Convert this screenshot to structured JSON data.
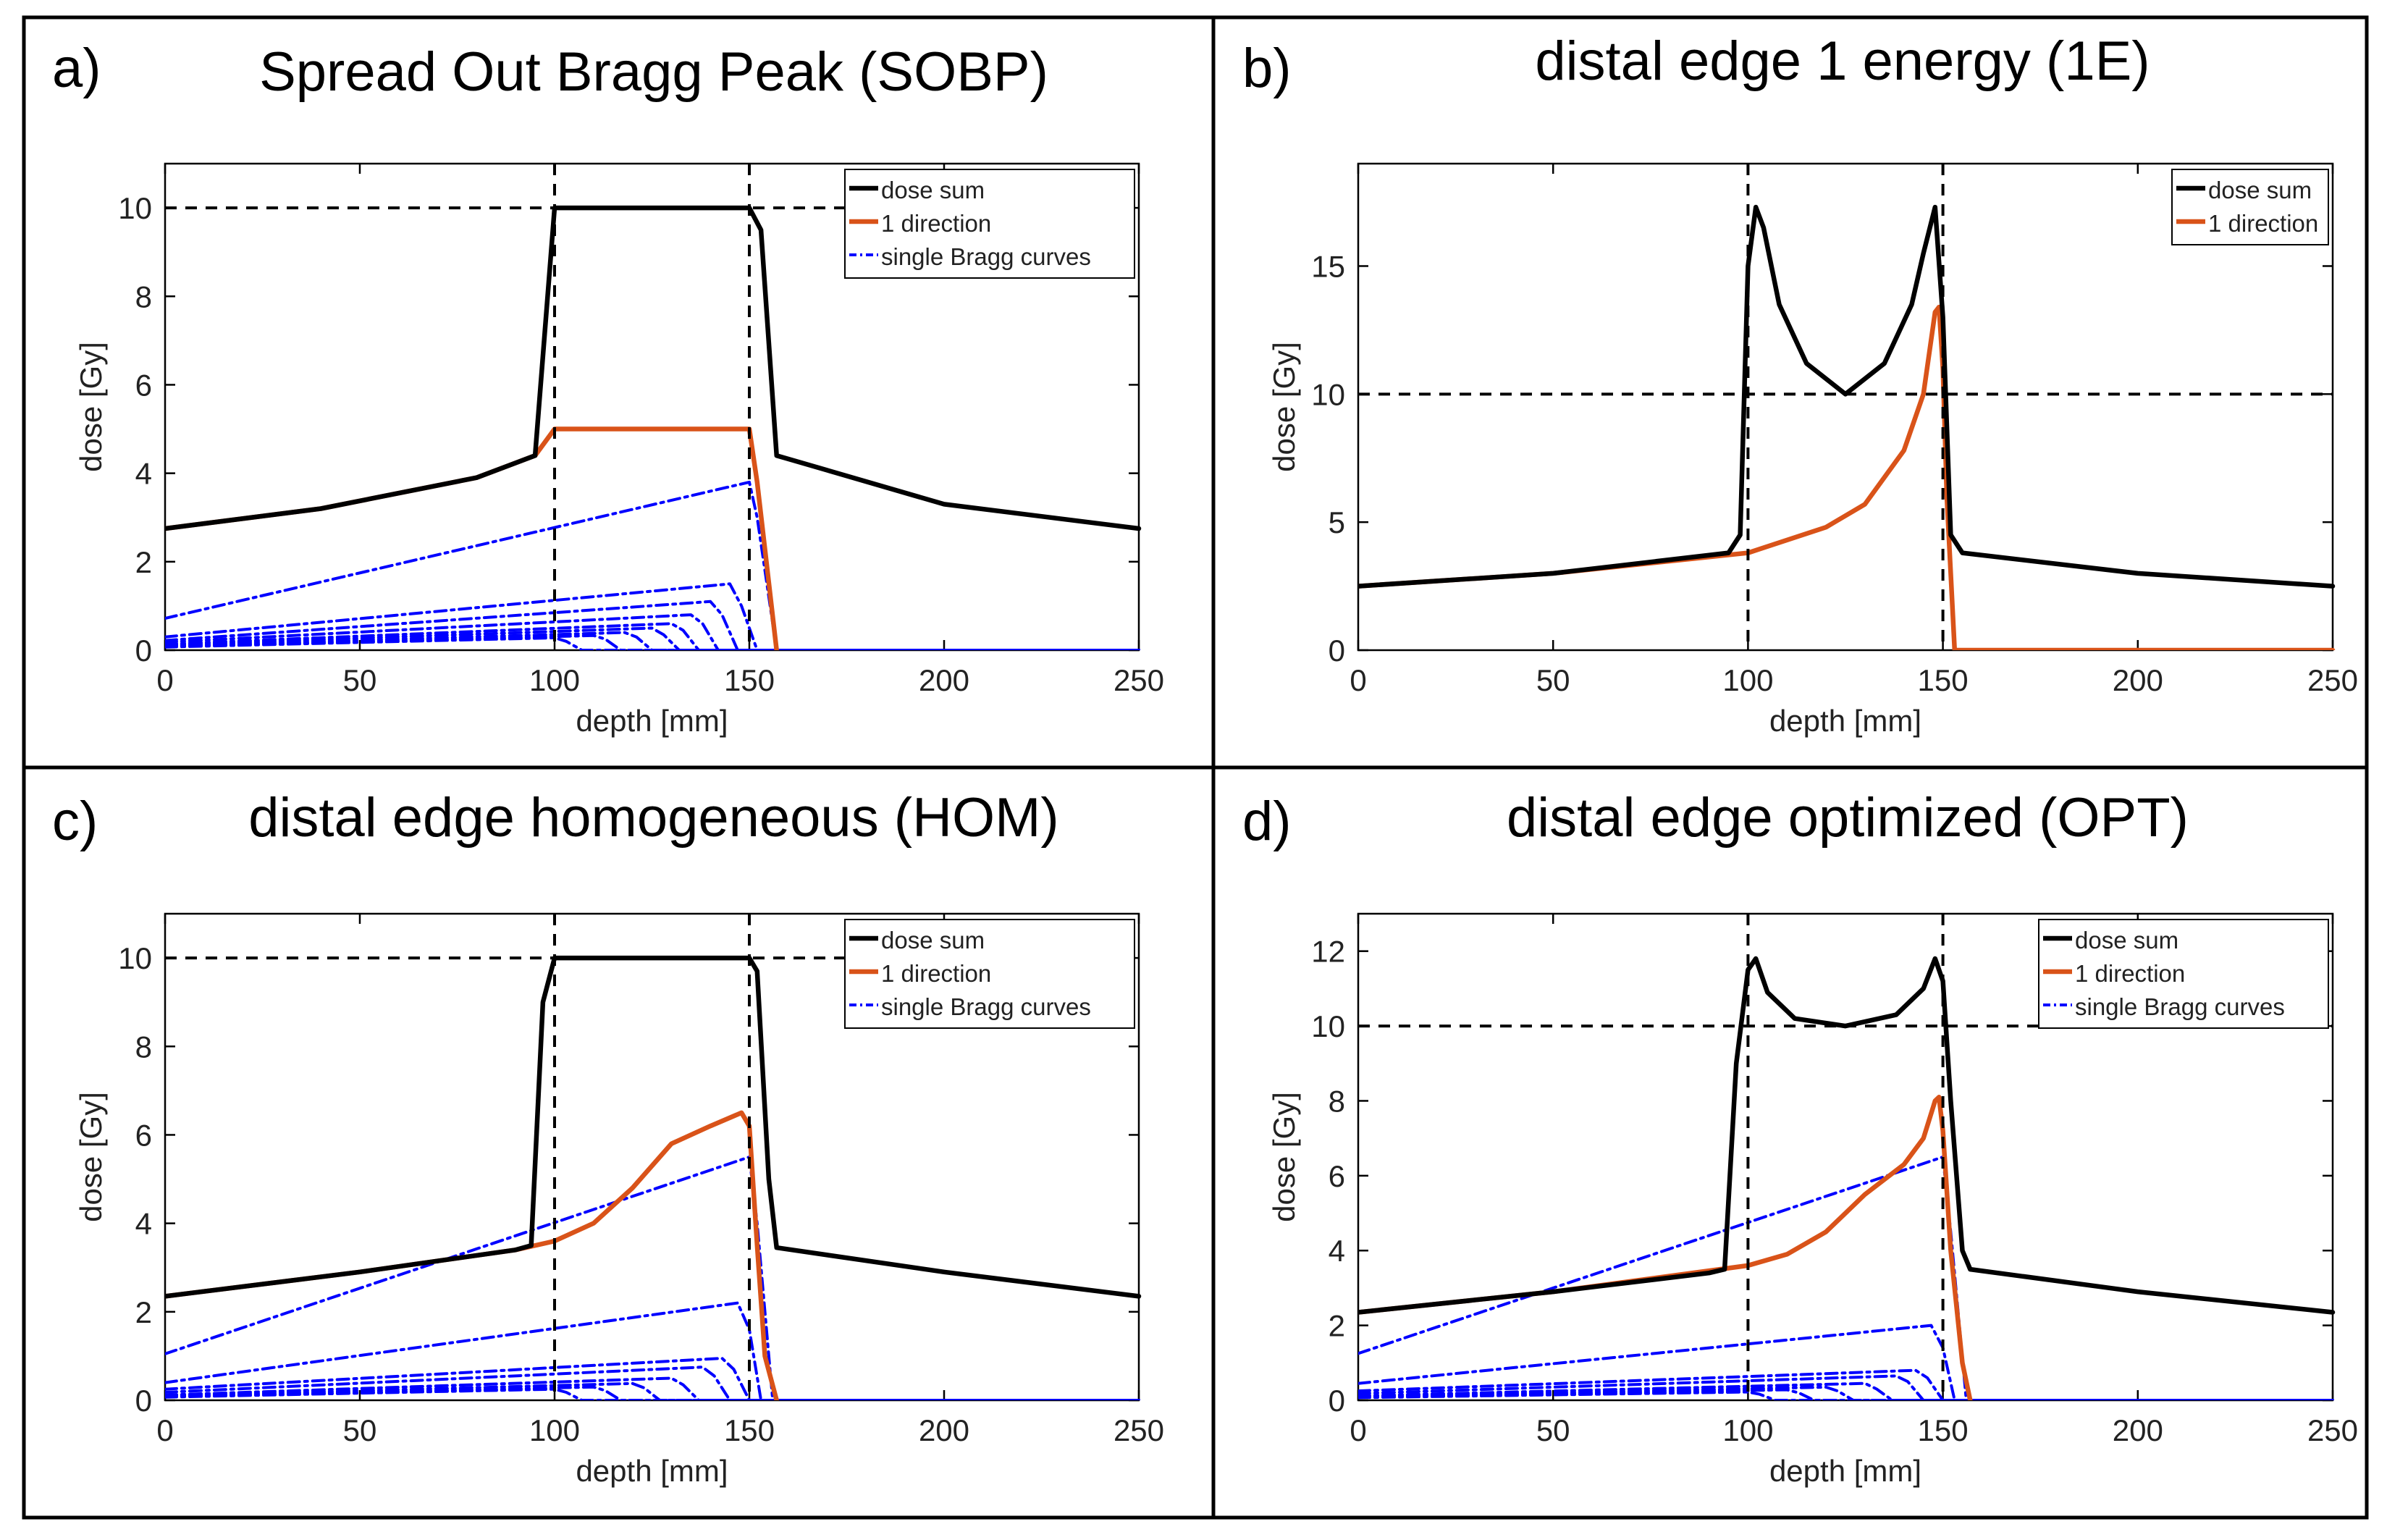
{
  "colors": {
    "dose_sum": "#000000",
    "one_direction": "#d95319",
    "single_bragg": "#0000ff",
    "guide": "#000000"
  },
  "chart_data": [
    {
      "type": "line",
      "panel_label": "a)",
      "title": "Spread Out Bragg Peak (SOBP)",
      "xlabel": "depth [mm]",
      "ylabel": "dose [Gy]",
      "xlim": [
        0,
        250
      ],
      "ylim": [
        0,
        11
      ],
      "xticks": [
        0,
        50,
        100,
        150,
        200,
        250
      ],
      "yticks": [
        0,
        2,
        4,
        6,
        8,
        10
      ],
      "grid": false,
      "legend_position": "top-right",
      "reference_lines": {
        "x": [
          100,
          150
        ],
        "y": [
          10
        ]
      },
      "series": [
        {
          "name": "dose sum",
          "kind": "dose_sum",
          "x": [
            0,
            40,
            80,
            95,
            100,
            150,
            153,
            157,
            200,
            250
          ],
          "y": [
            2.75,
            3.2,
            3.9,
            4.4,
            10,
            10,
            9.5,
            4.4,
            3.3,
            2.75
          ]
        },
        {
          "name": "1 direction",
          "kind": "one_dir",
          "x": [
            0,
            40,
            80,
            95,
            100,
            150,
            152,
            157
          ],
          "y": [
            2.75,
            3.2,
            3.9,
            4.4,
            5,
            5,
            3.8,
            0
          ]
        },
        {
          "name": "single Bragg curves",
          "kind": "bragg",
          "x": [
            0,
            150,
            152,
            157,
            250
          ],
          "y": [
            0.72,
            3.8,
            3.0,
            0,
            0
          ]
        },
        {
          "name": "",
          "kind": "bragg",
          "x": [
            0,
            145,
            148,
            152,
            250
          ],
          "y": [
            0.3,
            1.5,
            1.0,
            0,
            0
          ]
        },
        {
          "name": "",
          "kind": "bragg",
          "x": [
            0,
            140,
            143,
            147,
            250
          ],
          "y": [
            0.22,
            1.1,
            0.8,
            0,
            0
          ]
        },
        {
          "name": "",
          "kind": "bragg",
          "x": [
            0,
            135,
            138,
            142,
            250
          ],
          "y": [
            0.18,
            0.8,
            0.6,
            0,
            0
          ]
        },
        {
          "name": "",
          "kind": "bragg",
          "x": [
            0,
            130,
            133,
            137,
            250
          ],
          "y": [
            0.14,
            0.6,
            0.45,
            0,
            0
          ]
        },
        {
          "name": "",
          "kind": "bragg",
          "x": [
            0,
            125,
            128,
            132,
            250
          ],
          "y": [
            0.12,
            0.5,
            0.35,
            0,
            0
          ]
        },
        {
          "name": "",
          "kind": "bragg",
          "x": [
            0,
            118,
            121,
            125,
            250
          ],
          "y": [
            0.1,
            0.4,
            0.3,
            0,
            0
          ]
        },
        {
          "name": "",
          "kind": "bragg",
          "x": [
            0,
            110,
            113,
            117,
            250
          ],
          "y": [
            0.08,
            0.33,
            0.25,
            0,
            0
          ]
        },
        {
          "name": "",
          "kind": "bragg",
          "x": [
            0,
            100,
            103,
            107,
            250
          ],
          "y": [
            0.07,
            0.28,
            0.2,
            0,
            0
          ]
        }
      ]
    },
    {
      "type": "line",
      "panel_label": "b)",
      "title": "distal edge 1 energy (1E)",
      "xlabel": "depth [mm]",
      "ylabel": "dose [Gy]",
      "xlim": [
        0,
        250
      ],
      "ylim": [
        0,
        19
      ],
      "xticks": [
        0,
        50,
        100,
        150,
        200,
        250
      ],
      "yticks": [
        0,
        5,
        10,
        15
      ],
      "grid": false,
      "legend_position": "top-right",
      "reference_lines": {
        "x": [
          100,
          150
        ],
        "y": [
          10
        ]
      },
      "series": [
        {
          "name": "dose sum",
          "kind": "dose_sum",
          "x": [
            0,
            50,
            95,
            98,
            100,
            102,
            104,
            108,
            115,
            125,
            135,
            142,
            145,
            148,
            150,
            152,
            155,
            200,
            250
          ],
          "y": [
            2.5,
            3.0,
            3.8,
            4.5,
            15.0,
            17.3,
            16.5,
            13.5,
            11.2,
            10.0,
            11.2,
            13.5,
            15.5,
            17.3,
            13.0,
            4.5,
            3.8,
            3.0,
            2.5
          ]
        },
        {
          "name": "1 direction",
          "kind": "one_dir",
          "x": [
            0,
            50,
            100,
            120,
            130,
            140,
            145,
            148,
            149,
            150,
            151,
            153,
            250
          ],
          "y": [
            2.5,
            3.0,
            3.8,
            4.8,
            5.7,
            7.8,
            10.0,
            13.2,
            13.4,
            11.0,
            6.0,
            0,
            0
          ]
        }
      ]
    },
    {
      "type": "line",
      "panel_label": "c)",
      "title": "distal edge homogeneous (HOM)",
      "xlabel": "depth [mm]",
      "ylabel": "dose [Gy]",
      "xlim": [
        0,
        250
      ],
      "ylim": [
        0,
        11
      ],
      "xticks": [
        0,
        50,
        100,
        150,
        200,
        250
      ],
      "yticks": [
        0,
        2,
        4,
        6,
        8,
        10
      ],
      "grid": false,
      "legend_position": "top-right",
      "reference_lines": {
        "x": [
          100,
          150
        ],
        "y": [
          10
        ]
      },
      "series": [
        {
          "name": "dose sum",
          "kind": "dose_sum",
          "x": [
            0,
            50,
            90,
            94,
            97,
            100,
            150,
            152,
            155,
            157,
            200,
            250
          ],
          "y": [
            2.35,
            2.9,
            3.4,
            3.5,
            9.0,
            10,
            10,
            9.7,
            5.0,
            3.45,
            2.9,
            2.35
          ]
        },
        {
          "name": "1 direction",
          "kind": "one_dir",
          "x": [
            0,
            50,
            90,
            100,
            110,
            120,
            130,
            140,
            148,
            150,
            152,
            154,
            157
          ],
          "y": [
            2.35,
            2.9,
            3.4,
            3.6,
            4.0,
            4.8,
            5.8,
            6.2,
            6.5,
            6.2,
            3.5,
            1.0,
            0
          ]
        },
        {
          "name": "single Bragg curves",
          "kind": "bragg",
          "x": [
            0,
            150,
            152,
            156,
            250
          ],
          "y": [
            1.05,
            5.5,
            4.0,
            0,
            0
          ]
        },
        {
          "name": "",
          "kind": "bragg",
          "x": [
            0,
            147,
            150,
            153,
            250
          ],
          "y": [
            0.4,
            2.2,
            1.6,
            0,
            0
          ]
        },
        {
          "name": "",
          "kind": "bragg",
          "x": [
            0,
            143,
            146,
            150,
            250
          ],
          "y": [
            0.25,
            0.95,
            0.7,
            0,
            0
          ]
        },
        {
          "name": "",
          "kind": "bragg",
          "x": [
            0,
            138,
            141,
            145,
            250
          ],
          "y": [
            0.18,
            0.75,
            0.55,
            0,
            0
          ]
        },
        {
          "name": "",
          "kind": "bragg",
          "x": [
            0,
            130,
            133,
            137,
            250
          ],
          "y": [
            0.12,
            0.5,
            0.35,
            0,
            0
          ]
        },
        {
          "name": "",
          "kind": "bragg",
          "x": [
            0,
            120,
            123,
            127,
            250
          ],
          "y": [
            0.1,
            0.38,
            0.28,
            0,
            0
          ]
        },
        {
          "name": "",
          "kind": "bragg",
          "x": [
            0,
            110,
            113,
            117,
            250
          ],
          "y": [
            0.08,
            0.3,
            0.22,
            0,
            0
          ]
        },
        {
          "name": "",
          "kind": "bragg",
          "x": [
            0,
            100,
            103,
            107,
            250
          ],
          "y": [
            0.07,
            0.25,
            0.18,
            0,
            0
          ]
        }
      ]
    },
    {
      "type": "line",
      "panel_label": "d)",
      "title": "distal edge optimized (OPT)",
      "xlabel": "depth [mm]",
      "ylabel": "dose [Gy]",
      "xlim": [
        0,
        250
      ],
      "ylim": [
        0,
        13
      ],
      "xticks": [
        0,
        50,
        100,
        150,
        200,
        250
      ],
      "yticks": [
        0,
        2,
        4,
        6,
        8,
        10,
        12
      ],
      "grid": false,
      "legend_position": "top-right",
      "reference_lines": {
        "x": [
          100,
          150
        ],
        "y": [
          10
        ]
      },
      "series": [
        {
          "name": "dose sum",
          "kind": "dose_sum",
          "x": [
            0,
            50,
            90,
            94,
            97,
            100,
            102,
            105,
            112,
            125,
            138,
            145,
            148,
            150,
            152,
            155,
            157,
            200,
            250
          ],
          "y": [
            2.35,
            2.9,
            3.4,
            3.5,
            9.0,
            11.5,
            11.8,
            10.9,
            10.2,
            10.0,
            10.3,
            11.0,
            11.8,
            11.2,
            8.0,
            4.0,
            3.5,
            2.9,
            2.35
          ]
        },
        {
          "name": "1 direction",
          "kind": "one_dir",
          "x": [
            0,
            50,
            100,
            110,
            120,
            130,
            140,
            145,
            148,
            149,
            150,
            152,
            155,
            157
          ],
          "y": [
            2.35,
            2.9,
            3.6,
            3.9,
            4.5,
            5.5,
            6.3,
            7.0,
            8.0,
            8.1,
            7.2,
            4.0,
            1.0,
            0
          ]
        },
        {
          "name": "single Bragg curves",
          "kind": "bragg",
          "x": [
            0,
            150,
            152,
            156,
            250
          ],
          "y": [
            1.25,
            6.5,
            4.5,
            0,
            0
          ]
        },
        {
          "name": "",
          "kind": "bragg",
          "x": [
            0,
            147,
            150,
            153,
            250
          ],
          "y": [
            0.45,
            2.0,
            1.4,
            0,
            0
          ]
        },
        {
          "name": "",
          "kind": "bragg",
          "x": [
            0,
            143,
            146,
            150,
            250
          ],
          "y": [
            0.25,
            0.8,
            0.6,
            0,
            0
          ]
        },
        {
          "name": "",
          "kind": "bragg",
          "x": [
            0,
            138,
            141,
            145,
            250
          ],
          "y": [
            0.18,
            0.65,
            0.5,
            0,
            0
          ]
        },
        {
          "name": "",
          "kind": "bragg",
          "x": [
            0,
            130,
            133,
            137,
            250
          ],
          "y": [
            0.12,
            0.45,
            0.3,
            0,
            0
          ]
        },
        {
          "name": "",
          "kind": "bragg",
          "x": [
            0,
            120,
            123,
            127,
            250
          ],
          "y": [
            0.1,
            0.35,
            0.25,
            0,
            0
          ]
        },
        {
          "name": "",
          "kind": "bragg",
          "x": [
            0,
            110,
            113,
            117,
            250
          ],
          "y": [
            0.08,
            0.28,
            0.2,
            0,
            0
          ]
        },
        {
          "name": "",
          "kind": "bragg",
          "x": [
            0,
            100,
            103,
            107,
            250
          ],
          "y": [
            0.07,
            0.22,
            0.16,
            0,
            0
          ]
        }
      ]
    }
  ]
}
